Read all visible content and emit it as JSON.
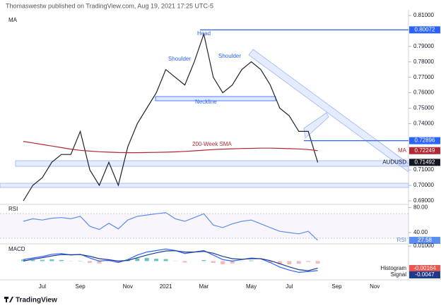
{
  "header": {
    "publisher": "Thomaswestw published on TradingView.com, Aug 19, 2021 17:25 UTC-5",
    "footer": "TradingView"
  },
  "chart_data": [
    {
      "type": "line",
      "title": "MA",
      "categories": [
        null,
        null,
        "Jul",
        null,
        null,
        null,
        "Sep",
        null,
        null,
        null,
        null,
        "Nov",
        null,
        null,
        null,
        "2021",
        null,
        null,
        null,
        "Mar",
        null,
        null,
        null,
        null,
        "May",
        null,
        null,
        null,
        "Jul",
        null,
        null,
        null,
        null,
        "Sep",
        null,
        null,
        null,
        "Nov",
        null,
        null
      ],
      "series": [
        {
          "name": "AUDUSD",
          "color": "#1e222d",
          "last_label": "0.71492",
          "values": [
            0.69,
            0.7,
            0.705,
            0.715,
            0.72,
            0.72,
            0.735,
            0.71,
            0.7,
            0.715,
            0.7,
            0.725,
            0.74,
            0.75,
            0.76,
            0.775,
            0.77,
            0.765,
            0.78,
            0.798,
            0.77,
            0.76,
            0.765,
            0.775,
            0.78,
            0.775,
            0.765,
            0.75,
            0.745,
            0.735,
            0.735,
            0.71492,
            null,
            null,
            null,
            null,
            null,
            null,
            null,
            null
          ]
        },
        {
          "name": "MA",
          "color": "#b22833",
          "last_label": "0.72249",
          "values": [
            0.7285,
            0.7275,
            0.7265,
            0.7255,
            0.7245,
            0.7235,
            0.7227,
            0.7222,
            0.7218,
            0.7215,
            0.7213,
            0.7212,
            0.7212,
            0.7213,
            0.7214,
            0.7215,
            0.7217,
            0.722,
            0.7224,
            0.7228,
            0.7232,
            0.7235,
            0.7237,
            0.7239,
            0.724,
            0.7241,
            0.7241,
            0.724,
            0.7238,
            0.7236,
            0.7232,
            0.72249,
            null,
            null,
            null,
            null,
            null,
            null,
            null,
            null
          ]
        }
      ],
      "ylim": [
        0.6877,
        0.8132
      ],
      "yticks": [
        {
          "value": 0.81,
          "label": "0.81000"
        },
        {
          "value": 0.79,
          "label": "0.79000"
        },
        {
          "value": 0.78,
          "label": "0.78000"
        },
        {
          "value": 0.77,
          "label": "0.77000"
        },
        {
          "value": 0.76,
          "label": "0.76000"
        },
        {
          "value": 0.75,
          "label": "0.75000"
        },
        {
          "value": 0.74,
          "label": "0.74000"
        },
        {
          "value": 0.71,
          "label": "0.71000"
        },
        {
          "value": 0.7,
          "label": "0.70000"
        },
        {
          "value": 0.69,
          "label": "0.69000"
        }
      ],
      "levels": [
        {
          "value": 0.80072,
          "label": "0.80072",
          "color": "#2962ff"
        },
        {
          "value": 0.72896,
          "label": "0.72896",
          "color": "#2962ff"
        }
      ],
      "annotations": [
        "Head",
        "Shoulder",
        "Shoulder",
        "Neckline",
        "200-Week SMA"
      ]
    },
    {
      "type": "line",
      "title": "RSI",
      "series": [
        {
          "name": "RSI",
          "color": "#5b8def",
          "last_label": "27.58",
          "values": [
            58,
            62,
            60,
            63,
            64,
            62,
            66,
            50,
            45,
            55,
            46,
            60,
            66,
            68,
            70,
            72,
            62,
            58,
            64,
            70,
            52,
            48,
            54,
            58,
            60,
            54,
            48,
            42,
            40,
            38,
            42,
            27.58
          ]
        }
      ],
      "ylim": [
        22,
        85
      ],
      "yticks": [
        {
          "value": 80,
          "label": "80.00"
        },
        {
          "value": 40,
          "label": "40.00"
        }
      ]
    },
    {
      "type": "macd",
      "title": "MACD",
      "series": [
        {
          "name": "Histogram",
          "color": "#26a69a",
          "last_label": "-0.00164",
          "values": [
            0.001,
            0.0008,
            0.0008,
            0.0011,
            0.0007,
            -0.0002,
            0.0002,
            -0.0012,
            -0.0016,
            -0.0004,
            -0.001,
            0.0006,
            0.0018,
            0.002,
            0.0015,
            0.0013,
            0.0001,
            -0.001,
            0,
            0.0006,
            -0.0012,
            -0.0021,
            -0.0016,
            -0.0002,
            0.0004,
            -0.0001,
            -0.0013,
            -0.0022,
            -0.0021,
            -0.0018,
            -0.0006,
            -0.00164
          ]
        },
        {
          "color": "#2962ff",
          "values": [
            0.001,
            0.002,
            0.003,
            0.0045,
            0.005,
            0.004,
            0.0045,
            0.002,
            0,
            0.0005,
            -0.001,
            0.001,
            0.004,
            0.006,
            0.007,
            0.008,
            0.007,
            0.005,
            0.006,
            0.007,
            0.004,
            0.001,
            0,
            0.001,
            0.002,
            0.0015,
            -0.001,
            -0.004,
            -0.006,
            -0.0075,
            -0.007,
            -0.00635
          ]
        },
        {
          "name": "Signal",
          "color": "#1e3a8a",
          "last_label": "-0.0047",
          "values": [
            0,
            0.0012,
            0.0022,
            0.0034,
            0.0043,
            0.0042,
            0.0043,
            0.0032,
            0.0016,
            0.0009,
            0,
            0.0004,
            0.0022,
            0.004,
            0.0055,
            0.0067,
            0.0069,
            0.006,
            0.006,
            0.0064,
            0.0052,
            0.0031,
            0.0016,
            0.0012,
            0.0016,
            0.0016,
            0.0003,
            -0.0018,
            -0.0039,
            -0.0057,
            -0.0064,
            -0.00471
          ]
        }
      ],
      "ylim": [
        -0.012,
        0.0105
      ],
      "yticks": [
        {
          "value": 0.01,
          "label": "0.01000"
        }
      ]
    }
  ]
}
